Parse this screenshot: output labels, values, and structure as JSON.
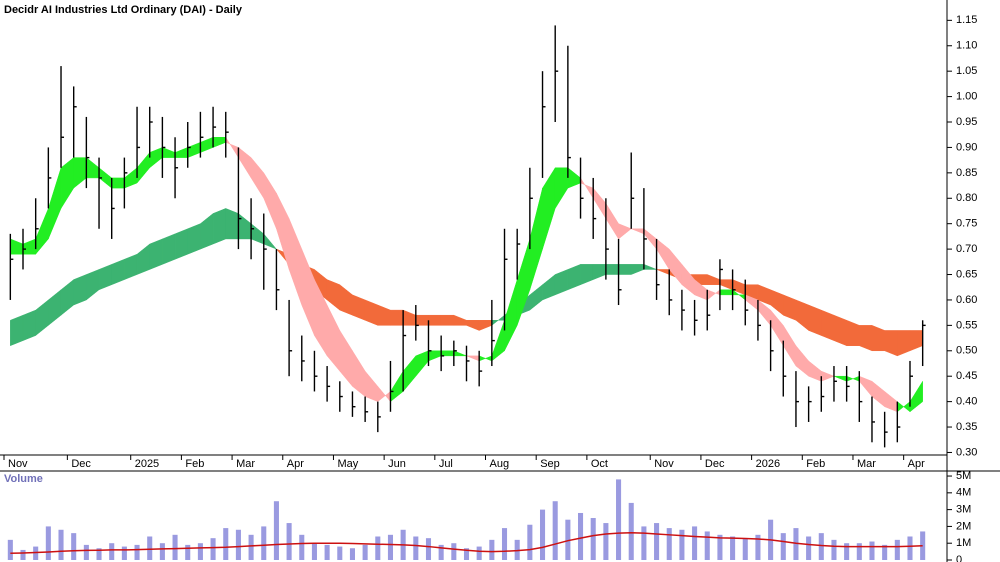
{
  "chart_data": [
    {
      "type": "ohlc",
      "title": "Decidr AI Industries Ltd Ordinary (DAI) - Daily",
      "color": "#000000",
      "categories": [
        "Nov",
        null,
        null,
        null,
        null,
        "Dec",
        null,
        null,
        null,
        null,
        "2025",
        null,
        null,
        null,
        "Feb",
        null,
        null,
        null,
        "Mar",
        null,
        null,
        null,
        "Apr",
        null,
        null,
        null,
        "May",
        null,
        null,
        null,
        "Jun",
        null,
        null,
        null,
        "Jul",
        null,
        null,
        null,
        "Aug",
        null,
        null,
        null,
        "Sep",
        null,
        null,
        null,
        "Oct",
        null,
        null,
        null,
        null,
        "Nov",
        null,
        null,
        null,
        "Dec",
        null,
        null,
        null,
        "2026",
        null,
        null,
        null,
        "Feb",
        null,
        null,
        null,
        "Mar",
        null,
        null,
        null,
        "Apr",
        null
      ],
      "highs": [
        0.73,
        0.74,
        0.8,
        0.9,
        1.06,
        1.02,
        0.96,
        0.88,
        0.84,
        0.88,
        0.98,
        0.98,
        0.96,
        0.92,
        0.95,
        0.97,
        0.98,
        0.97,
        0.9,
        0.8,
        0.77,
        0.7,
        0.6,
        0.53,
        0.5,
        0.47,
        0.44,
        0.42,
        0.41,
        0.4,
        0.48,
        0.58,
        0.59,
        0.56,
        0.53,
        0.52,
        0.51,
        0.5,
        0.6,
        0.74,
        0.74,
        0.86,
        1.05,
        1.14,
        1.1,
        0.88,
        0.84,
        0.8,
        0.72,
        0.89,
        0.82,
        0.72,
        0.66,
        0.62,
        0.6,
        0.62,
        0.68,
        0.66,
        0.64,
        0.6,
        0.56,
        0.52,
        0.46,
        0.43,
        0.45,
        0.47,
        0.47,
        0.46,
        0.41,
        0.38,
        0.4,
        0.48,
        0.56
      ],
      "lows": [
        0.6,
        0.66,
        0.7,
        0.78,
        0.86,
        0.88,
        0.82,
        0.74,
        0.72,
        0.78,
        0.84,
        0.88,
        0.84,
        0.8,
        0.86,
        0.88,
        0.9,
        0.88,
        0.7,
        0.68,
        0.62,
        0.58,
        0.45,
        0.44,
        0.42,
        0.4,
        0.38,
        0.37,
        0.36,
        0.34,
        0.38,
        0.42,
        0.52,
        0.47,
        0.46,
        0.47,
        0.44,
        0.43,
        0.47,
        0.54,
        0.64,
        0.7,
        0.84,
        0.95,
        0.84,
        0.76,
        0.72,
        0.64,
        0.59,
        0.74,
        0.66,
        0.6,
        0.57,
        0.54,
        0.53,
        0.54,
        0.58,
        0.58,
        0.55,
        0.52,
        0.46,
        0.41,
        0.35,
        0.36,
        0.38,
        0.4,
        0.4,
        0.36,
        0.32,
        0.31,
        0.32,
        0.39,
        0.47
      ],
      "closes": [
        0.68,
        0.7,
        0.74,
        0.84,
        0.92,
        0.98,
        0.88,
        0.84,
        0.78,
        0.85,
        0.9,
        0.95,
        0.9,
        0.86,
        0.9,
        0.92,
        0.94,
        0.93,
        0.76,
        0.74,
        0.7,
        0.62,
        0.5,
        0.48,
        0.45,
        0.43,
        0.41,
        0.39,
        0.38,
        0.37,
        0.42,
        0.53,
        0.55,
        0.5,
        0.49,
        0.5,
        0.48,
        0.46,
        0.52,
        0.68,
        0.71,
        0.8,
        0.98,
        1.05,
        0.88,
        0.8,
        0.76,
        0.7,
        0.62,
        0.8,
        0.72,
        0.63,
        0.6,
        0.58,
        0.56,
        0.57,
        0.66,
        0.62,
        0.58,
        0.55,
        0.5,
        0.45,
        0.4,
        0.4,
        0.41,
        0.44,
        0.43,
        0.4,
        0.36,
        0.34,
        0.35,
        0.45,
        0.55
      ],
      "ribbons": [
        {
          "up_color": "#3cb371",
          "down_color": "#f26a3a",
          "edge_a": [
            0.56,
            0.57,
            0.58,
            0.6,
            0.62,
            0.64,
            0.65,
            0.66,
            0.67,
            0.68,
            0.69,
            0.71,
            0.72,
            0.73,
            0.74,
            0.75,
            0.77,
            0.78,
            0.77,
            0.75,
            0.73,
            0.7,
            0.67,
            0.64,
            0.62,
            0.6,
            0.58,
            0.57,
            0.56,
            0.55,
            0.55,
            0.55,
            0.55,
            0.55,
            0.55,
            0.55,
            0.55,
            0.54,
            0.55,
            0.57,
            0.59,
            0.61,
            0.63,
            0.65,
            0.66,
            0.67,
            0.67,
            0.67,
            0.67,
            0.67,
            0.67,
            0.66,
            0.65,
            0.64,
            0.63,
            0.63,
            0.63,
            0.62,
            0.61,
            0.6,
            0.59,
            0.57,
            0.56,
            0.54,
            0.53,
            0.52,
            0.51,
            0.51,
            0.5,
            0.5,
            0.49,
            0.5,
            0.51
          ],
          "edge_b": [
            0.51,
            0.52,
            0.53,
            0.55,
            0.57,
            0.59,
            0.6,
            0.62,
            0.63,
            0.64,
            0.65,
            0.66,
            0.67,
            0.68,
            0.69,
            0.7,
            0.71,
            0.72,
            0.72,
            0.72,
            0.71,
            0.7,
            0.69,
            0.67,
            0.66,
            0.64,
            0.63,
            0.61,
            0.6,
            0.59,
            0.58,
            0.58,
            0.57,
            0.57,
            0.57,
            0.57,
            0.56,
            0.56,
            0.56,
            0.56,
            0.57,
            0.58,
            0.6,
            0.61,
            0.62,
            0.63,
            0.64,
            0.65,
            0.65,
            0.65,
            0.66,
            0.66,
            0.66,
            0.65,
            0.65,
            0.65,
            0.64,
            0.64,
            0.63,
            0.63,
            0.62,
            0.61,
            0.6,
            0.59,
            0.58,
            0.57,
            0.56,
            0.55,
            0.55,
            0.54,
            0.54,
            0.54,
            0.54
          ]
        },
        {
          "up_color": "#22ee22",
          "down_color": "#ffaaaa",
          "edge_a": [
            0.72,
            0.71,
            0.72,
            0.78,
            0.86,
            0.88,
            0.88,
            0.86,
            0.84,
            0.84,
            0.86,
            0.89,
            0.9,
            0.89,
            0.9,
            0.91,
            0.92,
            0.92,
            0.88,
            0.84,
            0.8,
            0.74,
            0.66,
            0.59,
            0.53,
            0.49,
            0.46,
            0.43,
            0.41,
            0.4,
            0.42,
            0.46,
            0.49,
            0.5,
            0.5,
            0.5,
            0.49,
            0.48,
            0.49,
            0.56,
            0.64,
            0.72,
            0.82,
            0.86,
            0.86,
            0.84,
            0.8,
            0.76,
            0.72,
            0.74,
            0.73,
            0.7,
            0.66,
            0.63,
            0.61,
            0.6,
            0.62,
            0.62,
            0.6,
            0.58,
            0.55,
            0.51,
            0.47,
            0.45,
            0.44,
            0.45,
            0.45,
            0.44,
            0.41,
            0.39,
            0.38,
            0.4,
            0.44
          ],
          "edge_b": [
            0.69,
            0.69,
            0.69,
            0.72,
            0.78,
            0.82,
            0.84,
            0.84,
            0.82,
            0.82,
            0.83,
            0.86,
            0.88,
            0.88,
            0.88,
            0.89,
            0.9,
            0.91,
            0.9,
            0.88,
            0.85,
            0.81,
            0.76,
            0.7,
            0.64,
            0.59,
            0.54,
            0.5,
            0.46,
            0.43,
            0.4,
            0.42,
            0.45,
            0.48,
            0.49,
            0.49,
            0.49,
            0.49,
            0.48,
            0.5,
            0.55,
            0.62,
            0.7,
            0.78,
            0.82,
            0.83,
            0.82,
            0.79,
            0.75,
            0.74,
            0.74,
            0.72,
            0.7,
            0.67,
            0.64,
            0.62,
            0.61,
            0.61,
            0.61,
            0.6,
            0.58,
            0.55,
            0.51,
            0.48,
            0.46,
            0.45,
            0.44,
            0.45,
            0.44,
            0.42,
            0.4,
            0.38,
            0.4
          ]
        }
      ],
      "ylim": [
        0.295,
        1.19
      ],
      "yticks": [
        {
          "value": 0.3,
          "label": "0.30"
        },
        0.35,
        {
          "value": 0.4,
          "label": "0.40"
        },
        0.45,
        {
          "value": 0.5,
          "label": "0.50"
        },
        0.55,
        {
          "value": 0.6,
          "label": "0.60"
        },
        0.65,
        {
          "value": 0.7,
          "label": "0.70"
        },
        0.75,
        {
          "value": 0.8,
          "label": "0.80"
        },
        0.85,
        {
          "value": 0.9,
          "label": "0.90"
        },
        0.95,
        {
          "value": 1,
          "label": "1.00"
        },
        1.05,
        {
          "value": 1.1,
          "label": "1.10"
        },
        1.15
      ]
    },
    {
      "type": "bar",
      "title": "Volume",
      "color": "#9a9ae0",
      "values": [
        1200000,
        600000,
        800000,
        2000000,
        1800000,
        1600000,
        900000,
        700000,
        1000000,
        800000,
        900000,
        1400000,
        1000000,
        1500000,
        900000,
        1000000,
        1300000,
        1900000,
        1800000,
        1500000,
        2000000,
        3500000,
        2200000,
        1500000,
        1000000,
        900000,
        800000,
        700000,
        900000,
        1400000,
        1500000,
        1800000,
        1400000,
        1300000,
        900000,
        1000000,
        700000,
        800000,
        1200000,
        1900000,
        1200000,
        2100000,
        3000000,
        3500000,
        2400000,
        2800000,
        2500000,
        2200000,
        4800000,
        3400000,
        2000000,
        2200000,
        1900000,
        1800000,
        2000000,
        1700000,
        1500000,
        1400000,
        1300000,
        1500000,
        2400000,
        1600000,
        1900000,
        1400000,
        1600000,
        1200000,
        1000000,
        1000000,
        1100000,
        900000,
        1200000,
        1400000,
        1700000
      ],
      "line": {
        "color": "#cc1111",
        "values": [
          400000,
          420000,
          450000,
          480000,
          520000,
          550000,
          570000,
          580000,
          600000,
          600000,
          620000,
          640000,
          660000,
          680000,
          700000,
          720000,
          740000,
          760000,
          800000,
          840000,
          880000,
          920000,
          950000,
          980000,
          1000000,
          1000000,
          1000000,
          980000,
          960000,
          940000,
          920000,
          900000,
          860000,
          800000,
          720000,
          650000,
          580000,
          520000,
          500000,
          520000,
          560000,
          620000,
          750000,
          950000,
          1150000,
          1300000,
          1450000,
          1550000,
          1600000,
          1620000,
          1600000,
          1550000,
          1500000,
          1450000,
          1400000,
          1360000,
          1320000,
          1300000,
          1280000,
          1250000,
          1200000,
          1100000,
          1000000,
          920000,
          860000,
          820000,
          800000,
          800000,
          800000,
          800000,
          800000,
          820000,
          850000
        ]
      },
      "ylim": [
        0,
        5300000
      ],
      "yticks": [
        0,
        {
          "value": 1000000,
          "label": "1M"
        },
        {
          "value": 2000000,
          "label": "2M"
        },
        {
          "value": 3000000,
          "label": "3M"
        },
        {
          "value": 4000000,
          "label": "4M"
        },
        {
          "value": 5000000,
          "label": "5M"
        }
      ]
    }
  ]
}
